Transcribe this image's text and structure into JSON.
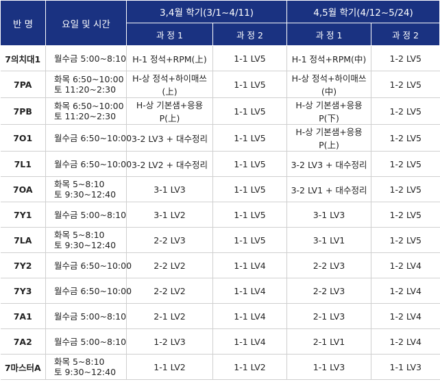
{
  "header": {
    "class_label": "반 명",
    "time_label": "요일 및 시간",
    "term1": "3,4월 학기(3/1~4/11)",
    "term2": "4,5월 학기(4/12~5/24)",
    "course1_label": "과 정 1",
    "course2_label": "과 정 2"
  },
  "rows": [
    {
      "name": "7의치대1",
      "time": [
        "월수금 5:00~8:10"
      ],
      "t1c1": "H-1 정석+RPM(上)",
      "t1c2": "1-1 LV5",
      "t2c1": "H-1 정석+RPM(中)",
      "t2c2": "1-2 LV5"
    },
    {
      "name": "7PA",
      "time": [
        "화목 6:50~10:00",
        "토 11:20~2:30"
      ],
      "t1c1": "H-상 정석+하이매쓰(上)",
      "t1c2": "1-1 LV5",
      "t2c1": "H-상 정석+하이매쓰(中)",
      "t2c2": "1-2 LV5"
    },
    {
      "name": "7PB",
      "time": [
        "화목 6:50~10:00",
        "토 11:20~2:30"
      ],
      "t1c1": "H-상 기본샘+응용P(上)",
      "t1c2": "1-1 LV5",
      "t2c1": "H-상 기본샘+응용P(下)",
      "t2c2": "1-2 LV5"
    },
    {
      "name": "7O1",
      "time": [
        "월수금 6:50~10:00"
      ],
      "t1c1": "3-2 LV3 + 대수정리",
      "t1c2": "1-1 LV5",
      "t2c1": "H-상 기본샘+응용P(上)",
      "t2c2": "1-2 LV5"
    },
    {
      "name": "7L1",
      "time": [
        "월수금 6:50~10:00"
      ],
      "t1c1": "3-2 LV2 + 대수정리",
      "t1c2": "1-1 LV5",
      "t2c1": "3-2 LV3 + 대수정리",
      "t2c2": "1-2 LV5"
    },
    {
      "name": "7OA",
      "time": [
        "화목 5~8:10",
        "토 9:30~12:40"
      ],
      "t1c1": "3-1 LV3",
      "t1c2": "1-1 LV5",
      "t2c1": "3-2 LV1 + 대수정리",
      "t2c2": "1-2 LV5"
    },
    {
      "name": "7Y1",
      "time": [
        "월수금 5:00~8:10"
      ],
      "t1c1": "3-1 LV2",
      "t1c2": "1-1 LV5",
      "t2c1": "3-1 LV3",
      "t2c2": "1-2 LV5"
    },
    {
      "name": "7LA",
      "time": [
        "화목 5~8:10",
        "토 9:30~12:40"
      ],
      "t1c1": "2-2 LV3",
      "t1c2": "1-1 LV5",
      "t2c1": "3-1 LV1",
      "t2c2": "1-2 LV5"
    },
    {
      "name": "7Y2",
      "time": [
        "월수금 6:50~10:00"
      ],
      "t1c1": "2-2 LV2",
      "t1c2": "1-1 LV4",
      "t2c1": "2-2 LV3",
      "t2c2": "1-2 LV4"
    },
    {
      "name": "7Y3",
      "time": [
        "월수금 6:50~10:00"
      ],
      "t1c1": "2-2 LV2",
      "t1c2": "1-1 LV4",
      "t2c1": "2-2 LV3",
      "t2c2": "1-2 LV4"
    },
    {
      "name": "7A1",
      "time": [
        "월수금 5:00~8:10"
      ],
      "t1c1": "2-1 LV2",
      "t1c2": "1-1 LV4",
      "t2c1": "2-1 LV3",
      "t2c2": "1-2 LV4"
    },
    {
      "name": "7A2",
      "time": [
        "월수금 5:00~8:10"
      ],
      "t1c1": "1-2 LV3",
      "t1c2": "1-1 LV4",
      "t2c1": "2-1 LV1",
      "t2c2": "1-2 LV4"
    },
    {
      "name": "7마스터A",
      "time": [
        "화목 5~8:10",
        "토 9:30~12:40"
      ],
      "t1c1": "1-1 LV2",
      "t1c2": "1-1 LV2",
      "t2c1": "1-1 LV3",
      "t2c2": "1-1 LV3"
    }
  ],
  "colors": {
    "header_bg": "#1a3281",
    "header_text": "#ffffff",
    "grid_line": "#cfcfcf"
  }
}
